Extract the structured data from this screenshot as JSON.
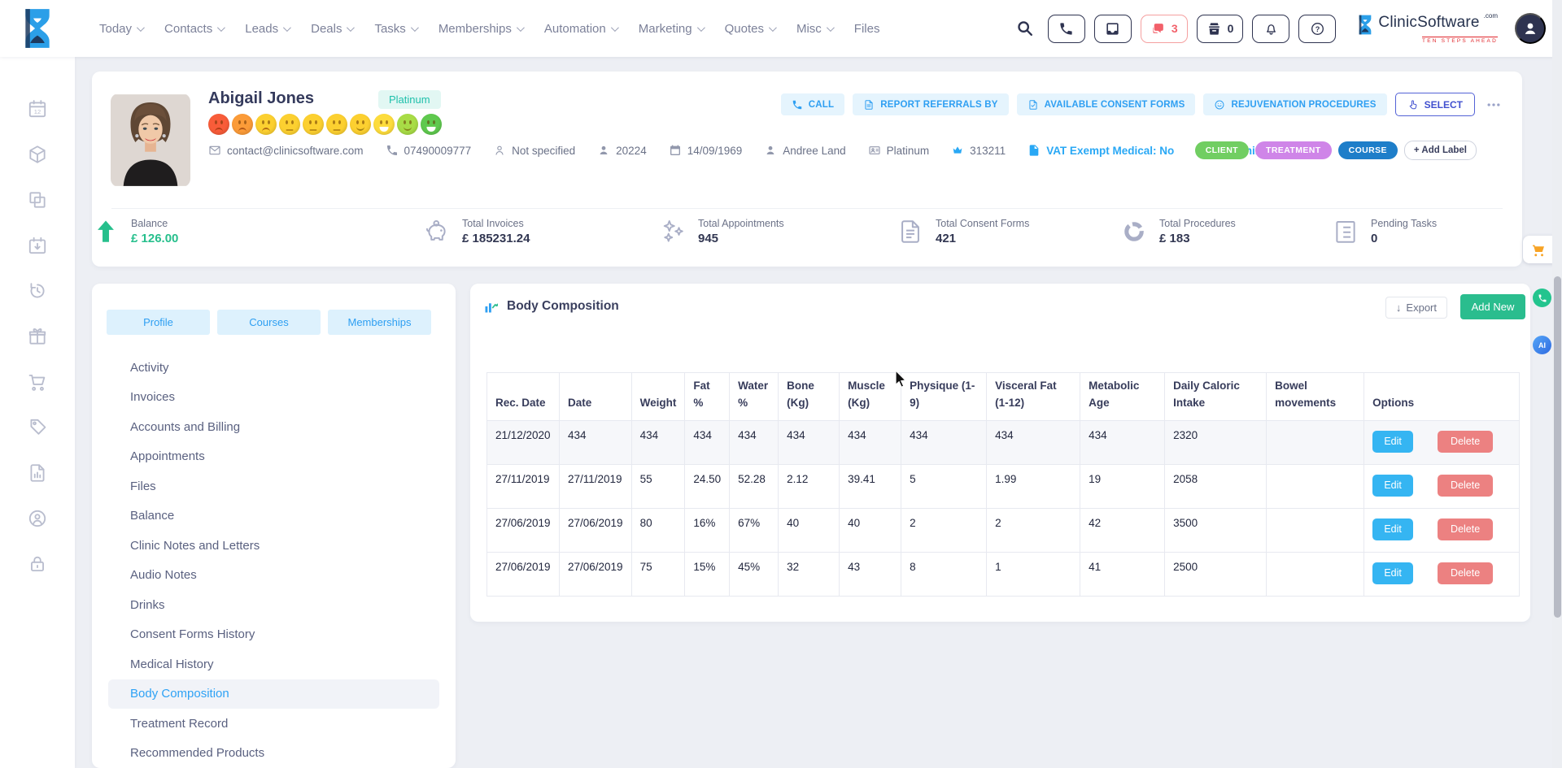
{
  "topnav": {
    "items": [
      {
        "label": "Today",
        "chevron": true
      },
      {
        "label": "Contacts",
        "chevron": true
      },
      {
        "label": "Leads",
        "chevron": true
      },
      {
        "label": "Deals",
        "chevron": true
      },
      {
        "label": "Tasks",
        "chevron": true
      },
      {
        "label": "Memberships",
        "chevron": true
      },
      {
        "label": "Automation",
        "chevron": true
      },
      {
        "label": "Marketing",
        "chevron": true
      },
      {
        "label": "Quotes",
        "chevron": true
      },
      {
        "label": "Misc",
        "chevron": true
      },
      {
        "label": "Files",
        "chevron": false
      }
    ],
    "chat_count": "3",
    "pos_count": "0",
    "brand": {
      "name": "ClinicSoftware",
      "tld": ".com",
      "tagline": "TEN STEPS AHEAD"
    }
  },
  "patient": {
    "name": "Abigail Jones",
    "tier": "Platinum",
    "moods": [
      {
        "color": "#f85c39",
        "mouth": "frown"
      },
      {
        "color": "#fb9b38",
        "mouth": "frown"
      },
      {
        "color": "#fcd030",
        "mouth": "frown"
      },
      {
        "color": "#fcd030",
        "mouth": "neutral"
      },
      {
        "color": "#fcd030",
        "mouth": "neutral"
      },
      {
        "color": "#fcd030",
        "mouth": "neutral"
      },
      {
        "color": "#fcd030",
        "mouth": "smile"
      },
      {
        "color": "#fddc3c",
        "mouth": "open"
      },
      {
        "color": "#a8dc46",
        "mouth": "smile"
      },
      {
        "color": "#5fc94e",
        "mouth": "open"
      }
    ],
    "contacts": [
      {
        "icon": "email-icon",
        "text": "contact@clinicsoftware.com",
        "style": "gray"
      },
      {
        "icon": "phone-icon",
        "text": "07490009777",
        "style": "gray"
      },
      {
        "icon": "person-outline-icon",
        "text": "Not specified",
        "style": "gray"
      },
      {
        "icon": "person-icon",
        "text": "20224",
        "style": "gray"
      },
      {
        "icon": "calendar-icon",
        "text": "14/09/1969",
        "style": "gray"
      },
      {
        "icon": "person-icon",
        "text": "Andree Land",
        "style": "gray"
      },
      {
        "icon": "id-card-icon",
        "text": "Platinum",
        "style": "gray"
      },
      {
        "icon": "crown-icon",
        "text": "313211",
        "style": "gray",
        "icon_cls": "icon-blue"
      },
      {
        "icon": "vat-doc-icon",
        "text": "VAT Exempt Medical: No",
        "style": "blue"
      },
      {
        "icon": "meeting-calendar-icon",
        "text": "Upcoming Meetings",
        "style": "blue"
      }
    ],
    "labels": [
      {
        "text": "CLIENT",
        "color": "#71ce62"
      },
      {
        "text": "TREATMENT",
        "color": "#cf85e8"
      },
      {
        "text": "COURSE",
        "color": "#1e7ec9"
      }
    ],
    "add_label": "+ Add Label",
    "actions": [
      {
        "label": "CALL",
        "icon": "call-icon"
      },
      {
        "label": "REPORT REFERRALS BY",
        "icon": "report-icon"
      },
      {
        "label": "AVAILABLE CONSENT FORMS",
        "icon": "consent-icon"
      },
      {
        "label": "REJUVENATION PROCEDURES",
        "icon": "rejuvenation-icon"
      }
    ],
    "select_label": "SELECT"
  },
  "stats": [
    {
      "icon": "piggy-bank-icon",
      "label": "Total Invoices",
      "value": "£ 185231.24",
      "cls": ""
    },
    {
      "icon": "sparkles-icon",
      "label": "Total Appointments",
      "value": "945",
      "cls": ""
    },
    {
      "icon": "consent-file-icon",
      "label": "Total Consent Forms",
      "value": "421",
      "cls": ""
    },
    {
      "icon": "donut-chart-icon",
      "label": "Total Procedures",
      "value": "£ 183",
      "cls": ""
    },
    {
      "icon": "task-list-icon",
      "label": "Pending Tasks",
      "value": "0",
      "cls": ""
    },
    {
      "icon": "arrow-up-icon",
      "label": "Balance",
      "value": "£ 126.00",
      "cls": "accent"
    }
  ],
  "profile_tabs": [
    "Profile",
    "Courses",
    "Memberships"
  ],
  "profile_menu": {
    "items": [
      "Activity",
      "Invoices",
      "Accounts and Billing",
      "Appointments",
      "Files",
      "Balance",
      "Clinic Notes and Letters",
      "Audio Notes",
      "Drinks",
      "Consent Forms History",
      "Medical History",
      "Body Composition",
      "Treatment Record",
      "Recommended Products"
    ],
    "active": "Body Composition"
  },
  "section": {
    "title": "Body Composition",
    "export_label": "Export",
    "add_new_label": "Add New"
  },
  "table": {
    "headers": [
      "Rec. Date",
      "Date",
      "Weight",
      "Fat %",
      "Water %",
      "Bone (Kg)",
      "Muscle (Kg)",
      "Physique (1-9)",
      "Visceral Fat (1-12)",
      "Metabolic Age",
      "Daily Caloric Intake",
      "Bowel movements",
      "Options"
    ],
    "edit_label": "Edit",
    "delete_label": "Delete",
    "rows": [
      [
        "21/12/2020",
        "434",
        "434",
        "434",
        "434",
        "434",
        "434",
        "434",
        "434",
        "434",
        "2320",
        ""
      ],
      [
        "27/11/2019",
        "27/11/2019",
        "55",
        "24.50",
        "52.28",
        "2.12",
        "39.41",
        "5",
        "1.99",
        "19",
        "2058",
        ""
      ],
      [
        "27/06/2019",
        "27/06/2019",
        "80",
        "16%",
        "67%",
        "40",
        "40",
        "2",
        "2",
        "42",
        "3500",
        ""
      ],
      [
        "27/06/2019",
        "27/06/2019",
        "75",
        "15%",
        "45%",
        "32",
        "43",
        "8",
        "1",
        "41",
        "2500",
        ""
      ]
    ]
  },
  "rail_icons": [
    "calendar-12-icon",
    "package-icon",
    "copy-icon",
    "calendar-import-icon",
    "history-icon",
    "gift-icon",
    "cart-icon",
    "tags-icon",
    "report-file-icon",
    "support-icon",
    "lock-icon"
  ],
  "floating": {
    "ai_label": "AI"
  },
  "colors": {
    "accent_blue": "#2e9ff2",
    "accent_green": "#2abd8e",
    "alert_red": "#f2606a",
    "navy": "#2e3350",
    "teal_badge": "#1fc0ab"
  }
}
